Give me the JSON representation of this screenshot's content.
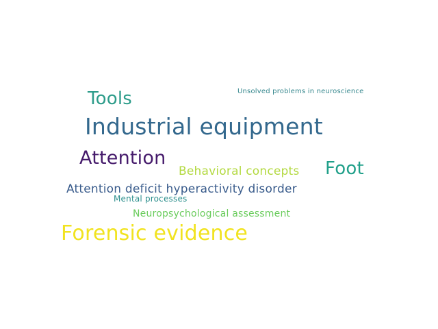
{
  "words": [
    {
      "text": "Unsolved problems in neuroscience",
      "color": "#35878d"
    },
    {
      "text": "Tools",
      "color": "#2d9c8a"
    },
    {
      "text": "Industrial equipment",
      "color": "#33688d"
    },
    {
      "text": "Attention",
      "color": "#451a6b"
    },
    {
      "text": "Behavioral concepts",
      "color": "#b3d940"
    },
    {
      "text": "Foot",
      "color": "#21a08a"
    },
    {
      "text": "Attention deficit hyperactivity disorder",
      "color": "#3a5c8c"
    },
    {
      "text": "Mental processes",
      "color": "#2b8e8c"
    },
    {
      "text": "Neuropsychological assessment",
      "color": "#6acc5c"
    },
    {
      "text": "Forensic evidence",
      "color": "#f1e31f"
    }
  ]
}
